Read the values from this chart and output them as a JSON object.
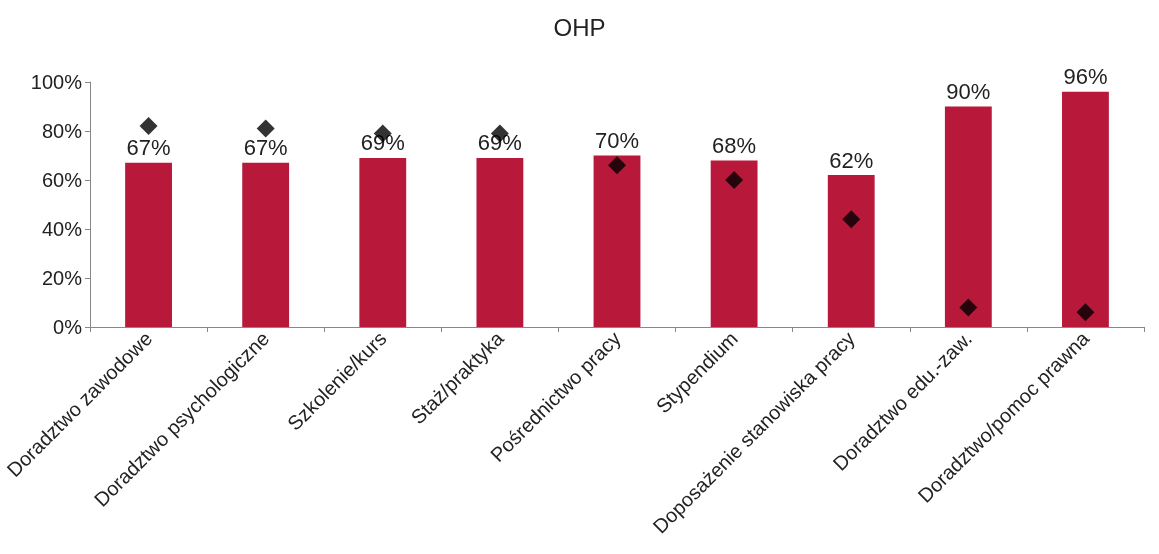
{
  "chart_data": {
    "type": "bar",
    "title": "OHP",
    "categories": [
      "Doradztwo zawodowe",
      "Doradztwo psychologiczne",
      "Szkolenie/kurs",
      "Staż/praktyka",
      "Pośrednictwo pracy",
      "Stypendium",
      "Doposażenie stanowiska pracy",
      "Doradztwo edu.-zaw.",
      "Doradztwo/pomoc prawna"
    ],
    "series": [
      {
        "color": "#b8193b",
        "values": [
          67,
          67,
          69,
          69,
          70,
          68,
          62,
          90,
          96
        ],
        "value_labels": [
          "67%",
          "67%",
          "69%",
          "69%",
          "70%",
          "68%",
          "62%",
          "90%",
          "96%"
        ]
      },
      {
        "type": "scatter",
        "color": "#000000",
        "marker": "diamond",
        "values": [
          82,
          81,
          79,
          79,
          66,
          60,
          44,
          8,
          6
        ]
      }
    ],
    "ylim": [
      0,
      100
    ],
    "yticks": [
      {
        "value": 0,
        "label": "0%"
      },
      {
        "value": 20,
        "label": "20%"
      },
      {
        "value": 40,
        "label": "40%"
      },
      {
        "value": 60,
        "label": "60%"
      },
      {
        "value": 80,
        "label": "80%"
      },
      {
        "value": 100,
        "label": "100%"
      }
    ],
    "grid": false
  }
}
